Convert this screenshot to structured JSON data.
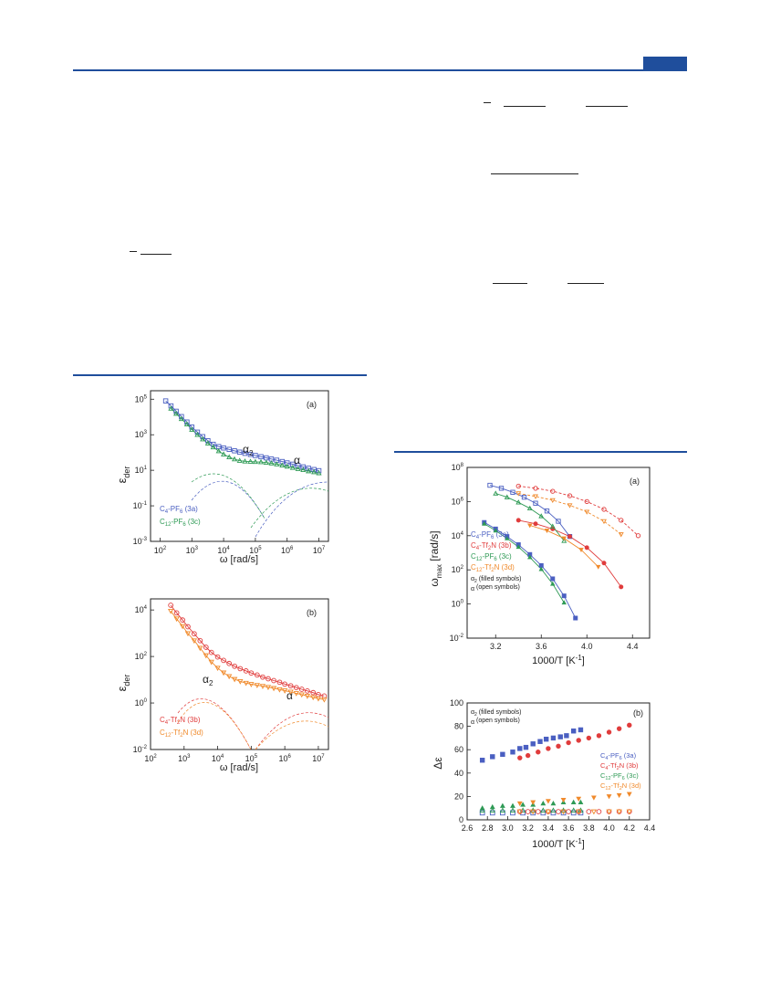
{
  "charts": {
    "left_a": {
      "panel_label": "(a)",
      "ylabel": "ε",
      "ylabel_sub": "der",
      "xlabel": "ω [rad/s]",
      "x_tick_labels": [
        "10",
        "10",
        "10",
        "10",
        "10",
        "10"
      ],
      "x_tick_exps": [
        "2",
        "3",
        "4",
        "5",
        "6",
        "7"
      ],
      "y_tick_labels": [
        "10",
        "10",
        "10",
        "10",
        "10"
      ],
      "y_tick_exps": [
        "5",
        "3",
        "1",
        "-1",
        "-3"
      ],
      "annotations": [
        {
          "text": "α",
          "sub": "2"
        },
        {
          "text": "α",
          "sub": ""
        }
      ],
      "legend": [
        {
          "pre": "C",
          "sub1": "4",
          "post": "-PF",
          "sub2": "6",
          "tail": " (3a)",
          "color": "#4a5fc1"
        },
        {
          "pre": "C",
          "sub1": "12",
          "post": "-PF",
          "sub2": "6",
          "tail": " (3c)",
          "color": "#2e9a55"
        }
      ]
    },
    "left_b": {
      "panel_label": "(b)",
      "ylabel": "ε",
      "ylabel_sub": "der",
      "xlabel": "ω [rad/s]",
      "x_tick_labels": [
        "10",
        "10",
        "10",
        "10",
        "10",
        "10"
      ],
      "x_tick_exps": [
        "2",
        "3",
        "4",
        "5",
        "6",
        "7"
      ],
      "y_tick_labels": [
        "10",
        "10",
        "10",
        "10"
      ],
      "y_tick_exps": [
        "4",
        "2",
        "0",
        "-2"
      ],
      "annotations": [
        {
          "text": "α",
          "sub": "2"
        },
        {
          "text": "α",
          "sub": ""
        }
      ],
      "legend": [
        {
          "pre": "C",
          "sub1": "4",
          "post": "-Tf",
          "sub2": "2",
          "tail": "N (3b)",
          "color": "#e03c3c"
        },
        {
          "pre": "C",
          "sub1": "12",
          "post": "-Tf",
          "sub2": "2",
          "tail": "N (3d)",
          "color": "#f08a2c"
        }
      ]
    },
    "right_a": {
      "panel_label": "(a)",
      "ylabel": "ω",
      "ylabel_sub": "max",
      "ylabel_unit": " [rad/s]",
      "xlabel": "1000/T [K",
      "xlabel_sup": "-1",
      "xlabel_end": "]",
      "x_tick_labels": [
        "3.2",
        "3.6",
        "4.0",
        "4.4"
      ],
      "y_tick_labels": [
        "10",
        "10",
        "10",
        "10",
        "10",
        "10"
      ],
      "y_tick_exps": [
        "8",
        "6",
        "4",
        "2",
        "0",
        "-2"
      ],
      "legend": [
        {
          "pre": "C",
          "sub1": "4",
          "post": "-PF",
          "sub2": "6",
          "tail": " (3a)",
          "color": "#4a5fc1"
        },
        {
          "pre": "C",
          "sub1": "4",
          "post": "-Tf",
          "sub2": "2",
          "tail": "N (3b)",
          "color": "#e03c3c"
        },
        {
          "pre": "C",
          "sub1": "12",
          "post": "-PF",
          "sub2": "6",
          "tail": " (3c)",
          "color": "#2e9a55"
        },
        {
          "pre": "C",
          "sub1": "12",
          "post": "-Tf",
          "sub2": "2",
          "tail": "N (3d)",
          "color": "#f08a2c"
        }
      ],
      "legend_notes": [
        {
          "pre": "α",
          "sub": "2",
          "post": " (filled symbols)"
        },
        {
          "pre": "α",
          "sub": "",
          "post": "  (open symbols)"
        }
      ]
    },
    "right_b": {
      "panel_label": "(b)",
      "ylabel": "Δε",
      "xlabel": "1000/T [K",
      "xlabel_sup": "-1",
      "xlabel_end": "]",
      "x_tick_labels": [
        "2.6",
        "2.8",
        "3.0",
        "3.2",
        "3.4",
        "3.6",
        "3.8",
        "4.0",
        "4.2",
        "4.4"
      ],
      "y_tick_labels": [
        "0",
        "20",
        "40",
        "60",
        "80",
        "100"
      ],
      "legend": [
        {
          "pre": "C",
          "sub1": "4",
          "post": "-PF",
          "sub2": "6",
          "tail": " (3a)",
          "color": "#4a5fc1"
        },
        {
          "pre": "C",
          "sub1": "4",
          "post": "-Tf",
          "sub2": "2",
          "tail": "N (3b)",
          "color": "#e03c3c"
        },
        {
          "pre": "C",
          "sub1": "12",
          "post": "-PF",
          "sub2": "6",
          "tail": " (3c)",
          "color": "#2e9a55"
        },
        {
          "pre": "C",
          "sub1": "12",
          "post": "-Tf",
          "sub2": "2",
          "tail": "N (3d)",
          "color": "#f08a2c"
        }
      ],
      "legend_notes": [
        {
          "pre": "α",
          "sub": "2",
          "post": " (filled symbols)"
        },
        {
          "pre": "α",
          "sub": "",
          "post": "  (open symbols)"
        }
      ]
    }
  },
  "chart_data": [
    {
      "type": "scatter",
      "xscale": "log",
      "yscale": "log",
      "xlim": [
        50,
        20000000
      ],
      "ylim": [
        0.001,
        300000
      ],
      "series": [
        {
          "name": "C4-PF6 (3a)",
          "color": "#4a5fc1",
          "marker": "square-open",
          "x": [
            150,
            220,
            320,
            470,
            700,
            1000,
            1500,
            2200,
            3200,
            4700,
            7000,
            10000,
            15000,
            22000,
            32000,
            47000,
            70000,
            100000,
            150000,
            220000,
            320000,
            470000,
            700000,
            1000000,
            1500000,
            2200000,
            3200000,
            4700000,
            7000000,
            10000000
          ],
          "y": [
            80000,
            42000,
            21000,
            10500,
            5200,
            2700,
            1400,
            780,
            460,
            290,
            215,
            180,
            150,
            125,
            105,
            90,
            78,
            68,
            58,
            50,
            43,
            37,
            31,
            26,
            22,
            18.5,
            15.5,
            13,
            11,
            9.5
          ]
        },
        {
          "name": "C12-PF6 (3c)",
          "color": "#2e9a55",
          "marker": "triangle-open",
          "x": [
            220,
            320,
            470,
            700,
            1000,
            1500,
            2200,
            3200,
            4700,
            7000,
            10000,
            15000,
            22000,
            32000,
            47000,
            70000,
            100000,
            150000,
            220000,
            320000,
            470000,
            700000,
            1000000,
            1500000,
            2200000,
            3200000,
            4700000,
            7000000,
            10000000
          ],
          "y": [
            30000,
            15500,
            7800,
            3900,
            1950,
            1000,
            560,
            330,
            200,
            120,
            80,
            55,
            42,
            35,
            32,
            31,
            30,
            29,
            27,
            25,
            22,
            19,
            16.5,
            14,
            12,
            10.5,
            9,
            8,
            7
          ]
        }
      ]
    },
    {
      "type": "scatter",
      "xscale": "log",
      "yscale": "log",
      "xlim": [
        100,
        20000000
      ],
      "ylim": [
        0.01,
        30000
      ],
      "series": [
        {
          "name": "C4-Tf2N (3b)",
          "color": "#e03c3c",
          "marker": "circle-open",
          "x": [
            400,
            600,
            900,
            1300,
            2000,
            3000,
            4500,
            6500,
            10000,
            15000,
            22000,
            32000,
            47000,
            70000,
            100000,
            150000,
            220000,
            320000,
            470000,
            700000,
            1000000,
            1500000,
            2200000,
            3200000,
            4700000,
            7000000,
            10000000,
            15000000
          ],
          "y": [
            16000,
            7500,
            3700,
            1900,
            950,
            480,
            250,
            150,
            95,
            68,
            50,
            38,
            30,
            24,
            19.5,
            16,
            13,
            11,
            9.2,
            7.8,
            6.5,
            5.5,
            4.6,
            3.9,
            3.3,
            2.8,
            2.3,
            2
          ]
        },
        {
          "name": "C12-Tf2N (3d)",
          "color": "#f08a2c",
          "marker": "triangle-down-open",
          "x": [
            400,
            600,
            900,
            1300,
            2000,
            3000,
            4500,
            6500,
            10000,
            15000,
            22000,
            32000,
            47000,
            70000,
            100000,
            150000,
            220000,
            320000,
            470000,
            700000,
            1000000,
            1500000,
            2200000,
            3200000,
            4700000,
            7000000,
            10000000,
            15000000
          ],
          "y": [
            9000,
            4200,
            2000,
            980,
            480,
            230,
            110,
            58,
            32,
            20,
            14,
            10.5,
            8.5,
            7.2,
            6.4,
            5.8,
            5.3,
            4.8,
            4.3,
            3.8,
            3.4,
            3,
            2.6,
            2.3,
            2,
            1.75,
            1.55,
            1.4
          ]
        }
      ]
    },
    {
      "type": "scatter",
      "xscale": "linear",
      "yscale": "log",
      "xlim": [
        2.95,
        4.55
      ],
      "ylim": [
        0.01,
        100000000
      ],
      "series": [
        {
          "name": "C4-PF6 (3a) α2",
          "color": "#4a5fc1",
          "marker": "square-filled",
          "x": [
            3.1,
            3.2,
            3.3,
            3.4,
            3.5,
            3.6,
            3.7,
            3.8,
            3.9
          ],
          "y": [
            60000,
            25000,
            9000,
            3000,
            800,
            180,
            30,
            3,
            0.15
          ]
        },
        {
          "name": "C4-PF6 (3a) α",
          "color": "#4a5fc1",
          "marker": "square-open",
          "x": [
            3.15,
            3.25,
            3.35,
            3.45,
            3.55,
            3.65,
            3.75,
            3.85
          ],
          "y": [
            9000000,
            6000000,
            3500000,
            1800000,
            800000,
            280000,
            70000,
            9000
          ]
        },
        {
          "name": "C4-Tf2N (3b) α2",
          "color": "#e03c3c",
          "marker": "circle-filled",
          "x": [
            3.4,
            3.55,
            3.7,
            3.85,
            4.0,
            4.15,
            4.3
          ],
          "y": [
            80000,
            50000,
            25000,
            9000,
            2000,
            250,
            10
          ]
        },
        {
          "name": "C4-Tf2N (3b) α",
          "color": "#e03c3c",
          "marker": "circle-open",
          "x": [
            3.4,
            3.55,
            3.7,
            3.85,
            4.0,
            4.15,
            4.3,
            4.45
          ],
          "y": [
            8000000,
            6000000,
            4000000,
            2200000,
            1000000,
            350000,
            80000,
            10000
          ]
        },
        {
          "name": "C12-PF6 (3c) α2",
          "color": "#2e9a55",
          "marker": "triangle-filled",
          "x": [
            3.1,
            3.2,
            3.3,
            3.4,
            3.5,
            3.6,
            3.7,
            3.8
          ],
          "y": [
            50000,
            20000,
            7000,
            2200,
            550,
            110,
            15,
            1.2
          ]
        },
        {
          "name": "C12-PF6 (3c) α",
          "color": "#2e9a55",
          "marker": "triangle-open",
          "x": [
            3.2,
            3.3,
            3.4,
            3.5,
            3.6,
            3.7,
            3.8
          ],
          "y": [
            3000000,
            1800000,
            900000,
            400000,
            140000,
            35000,
            5000
          ]
        },
        {
          "name": "C12-Tf2N (3d) α2",
          "color": "#f08a2c",
          "marker": "triangle-down-filled",
          "x": [
            3.5,
            3.65,
            3.8,
            3.95,
            4.1
          ],
          "y": [
            40000,
            20000,
            7000,
            1500,
            150
          ]
        },
        {
          "name": "C12-Tf2N (3d) α",
          "color": "#f08a2c",
          "marker": "triangle-down-open",
          "x": [
            3.4,
            3.55,
            3.7,
            3.85,
            4.0,
            4.15,
            4.3
          ],
          "y": [
            3000000,
            2000000,
            1200000,
            600000,
            250000,
            70000,
            12000
          ]
        }
      ]
    },
    {
      "type": "scatter",
      "xscale": "linear",
      "yscale": "linear",
      "xlim": [
        2.6,
        4.4
      ],
      "ylim": [
        0,
        100
      ],
      "series": [
        {
          "name": "C4-PF6 (3a) α2",
          "color": "#4a5fc1",
          "marker": "square-filled",
          "x": [
            2.75,
            2.85,
            2.95,
            3.05,
            3.12,
            3.18,
            3.25,
            3.32,
            3.38,
            3.45,
            3.52,
            3.58,
            3.65,
            3.72
          ],
          "y": [
            51,
            54,
            56,
            58,
            61,
            62,
            65,
            67,
            69,
            70,
            71,
            72,
            76,
            77
          ]
        },
        {
          "name": "C4-Tf2N (3b) α2",
          "color": "#e03c3c",
          "marker": "circle-filled",
          "x": [
            3.12,
            3.2,
            3.3,
            3.4,
            3.5,
            3.6,
            3.7,
            3.8,
            3.9,
            4.0,
            4.1,
            4.2
          ],
          "y": [
            53,
            55,
            58,
            61,
            63,
            66,
            68,
            70,
            72,
            75,
            78,
            81
          ]
        },
        {
          "name": "C12-PF6 (3c) α2",
          "color": "#2e9a55",
          "marker": "triangle-filled",
          "x": [
            2.75,
            2.85,
            2.95,
            3.05,
            3.15,
            3.25,
            3.35,
            3.45,
            3.55,
            3.65,
            3.72
          ],
          "y": [
            10,
            11,
            12,
            12,
            13,
            13,
            14,
            14,
            15,
            15,
            15
          ]
        },
        {
          "name": "C12-Tf2N (3d) α2",
          "color": "#f08a2c",
          "marker": "triangle-down-filled",
          "x": [
            3.12,
            3.25,
            3.4,
            3.55,
            3.7,
            3.85,
            4.0,
            4.1,
            4.2
          ],
          "y": [
            14,
            15,
            16,
            17,
            18,
            19,
            20,
            21,
            22
          ]
        },
        {
          "name": "C4-PF6 (3a) α",
          "color": "#4a5fc1",
          "marker": "square-open",
          "x": [
            2.75,
            2.85,
            2.95,
            3.05,
            3.15,
            3.25,
            3.35,
            3.45,
            3.55,
            3.65,
            3.72
          ],
          "y": [
            6,
            6,
            6,
            6,
            6,
            6,
            6,
            6,
            6,
            6,
            6
          ]
        },
        {
          "name": "C12-PF6 (3c) α",
          "color": "#2e9a55",
          "marker": "triangle-open",
          "x": [
            2.75,
            2.85,
            2.95,
            3.05,
            3.15,
            3.25,
            3.35,
            3.45,
            3.55,
            3.65,
            3.72
          ],
          "y": [
            8,
            8,
            8,
            8,
            8,
            8,
            8,
            8,
            8,
            8,
            8
          ]
        },
        {
          "name": "C4-Tf2N (3b) α",
          "color": "#e03c3c",
          "marker": "circle-open",
          "x": [
            3.12,
            3.2,
            3.3,
            3.4,
            3.5,
            3.6,
            3.7,
            3.8,
            3.9,
            4.0,
            4.1,
            4.2
          ],
          "y": [
            7,
            7,
            7,
            7,
            7,
            7,
            7,
            7,
            7,
            7,
            7,
            7
          ]
        },
        {
          "name": "C12-Tf2N (3d) α",
          "color": "#f08a2c",
          "marker": "triangle-down-open",
          "x": [
            3.12,
            3.25,
            3.4,
            3.55,
            3.7,
            3.85,
            4.0,
            4.1,
            4.2
          ],
          "y": [
            7,
            7,
            7,
            7,
            7,
            7,
            7,
            7,
            7
          ]
        }
      ]
    }
  ]
}
